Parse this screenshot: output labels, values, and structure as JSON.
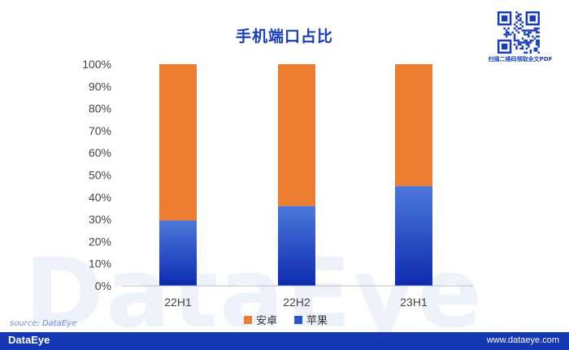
{
  "header": {
    "qr_caption": "扫描二维码领取全文PDF"
  },
  "watermark": "DataEye",
  "source": "source: DataEye",
  "footer": {
    "brand": "DataEye",
    "website": "www.dataeye.com"
  },
  "colors": {
    "android": "#ed7d31",
    "apple_top": "#4c79da",
    "apple_bottom": "#0e2ab0",
    "title": "#1a3dbf",
    "footer": "#1537b3"
  },
  "chart_data": {
    "type": "bar",
    "stacked": true,
    "title": "手机端口占比",
    "categories": [
      "22H1",
      "22H2",
      "23H1"
    ],
    "series": [
      {
        "name": "苹果",
        "values": [
          29.5,
          36,
          45
        ]
      },
      {
        "name": "安卓",
        "values": [
          70.5,
          64,
          55
        ]
      }
    ],
    "ylim": [
      0,
      100
    ],
    "yticks": [
      "0%",
      "10%",
      "20%",
      "30%",
      "40%",
      "50%",
      "60%",
      "70%",
      "80%",
      "90%",
      "100%"
    ],
    "legend": [
      "安卓",
      "苹果"
    ],
    "legend_position": "bottom",
    "grid": false
  }
}
